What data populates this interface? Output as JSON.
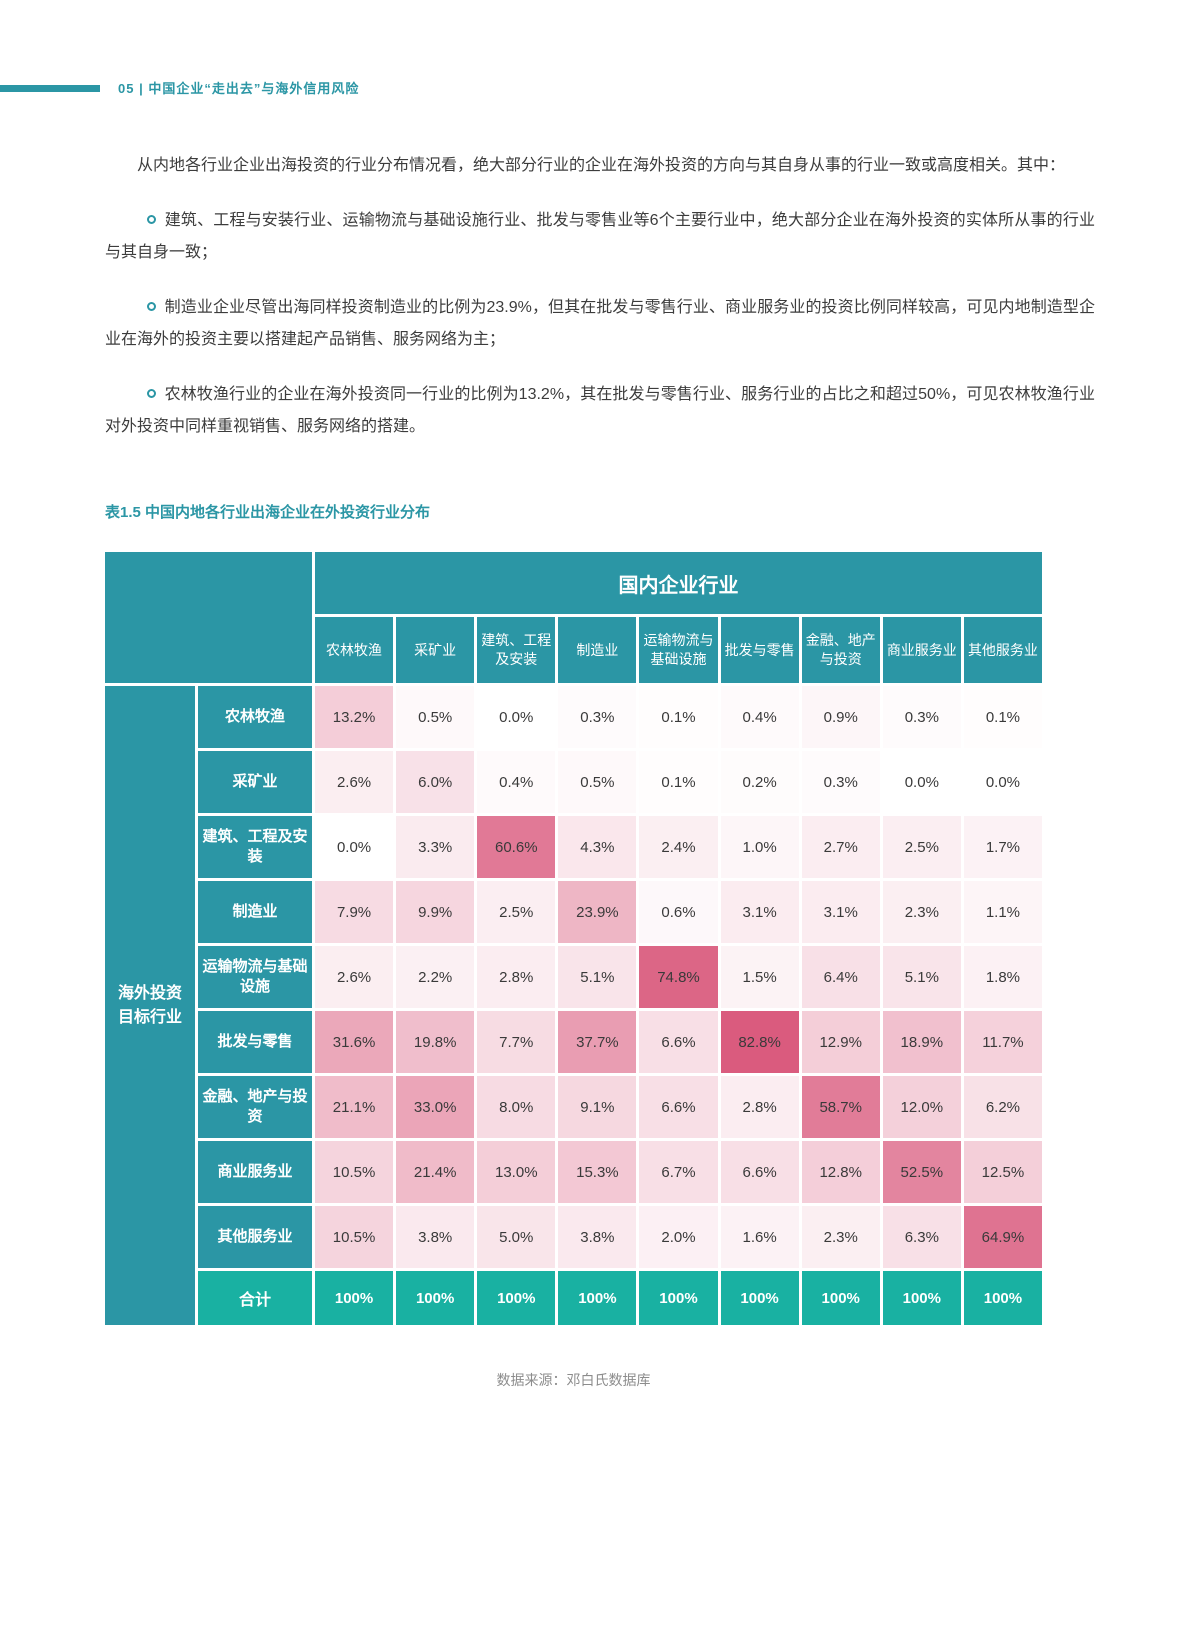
{
  "page_header": {
    "text": "05 | 中国企业“走出去”与海外信用风险"
  },
  "intro": "从内地各行业企业出海投资的行业分布情况看，绝大部分行业的企业在海外投资的方向与其自身从事的行业一致或高度相关。其中：",
  "bullets": [
    "建筑、工程与安装行业、运输物流与基础设施行业、批发与零售业等6个主要行业中，绝大部分企业在海外投资的实体所从事的行业与其自身一致；",
    "制造业企业尽管出海同样投资制造业的比例为23.9%，但其在批发与零售行业、商业服务业的投资比例同样较高，可见内地制造型企业在海外的投资主要以搭建起产品销售、服务网络为主；",
    "农林牧渔行业的企业在海外投资同一行业的比例为13.2%，其在批发与零售行业、服务行业的占比之和超过50%，可见农林牧渔行业对外投资中同样重视销售、服务网络的搭建。"
  ],
  "table": {
    "title": "表1.5 中国内地各行业出海企业在外投资行业分布",
    "top_header": "国内企业行业",
    "left_header_lines": [
      "海外投资",
      "目标行业"
    ],
    "columns": [
      "农林牧渔",
      "采矿业",
      "建筑、工程及安装",
      "制造业",
      "运输物流与基础设施",
      "批发与零售",
      "金融、地产与投资",
      "商业服务业",
      "其他服务业"
    ],
    "rows": [
      {
        "label": "农林牧渔",
        "values": [
          "13.2%",
          "0.5%",
          "0.0%",
          "0.3%",
          "0.1%",
          "0.4%",
          "0.9%",
          "0.3%",
          "0.1%"
        ]
      },
      {
        "label": "采矿业",
        "values": [
          "2.6%",
          "6.0%",
          "0.4%",
          "0.5%",
          "0.1%",
          "0.2%",
          "0.3%",
          "0.0%",
          "0.0%"
        ]
      },
      {
        "label": "建筑、工程及安装",
        "values": [
          "0.0%",
          "3.3%",
          "60.6%",
          "4.3%",
          "2.4%",
          "1.0%",
          "2.7%",
          "2.5%",
          "1.7%"
        ]
      },
      {
        "label": "制造业",
        "values": [
          "7.9%",
          "9.9%",
          "2.5%",
          "23.9%",
          "0.6%",
          "3.1%",
          "3.1%",
          "2.3%",
          "1.1%"
        ]
      },
      {
        "label": "运输物流与基础设施",
        "values": [
          "2.6%",
          "2.2%",
          "2.8%",
          "5.1%",
          "74.8%",
          "1.5%",
          "6.4%",
          "5.1%",
          "1.8%"
        ]
      },
      {
        "label": "批发与零售",
        "values": [
          "31.6%",
          "19.8%",
          "7.7%",
          "37.7%",
          "6.6%",
          "82.8%",
          "12.9%",
          "18.9%",
          "11.7%"
        ]
      },
      {
        "label": "金融、地产与投资",
        "values": [
          "21.1%",
          "33.0%",
          "8.0%",
          "9.1%",
          "6.6%",
          "2.8%",
          "58.7%",
          "12.0%",
          "6.2%"
        ]
      },
      {
        "label": "商业服务业",
        "values": [
          "10.5%",
          "21.4%",
          "13.0%",
          "15.3%",
          "6.7%",
          "6.6%",
          "12.8%",
          "52.5%",
          "12.5%"
        ]
      },
      {
        "label": "其他服务业",
        "values": [
          "10.5%",
          "3.8%",
          "5.0%",
          "3.8%",
          "2.0%",
          "1.6%",
          "2.3%",
          "6.3%",
          "64.9%"
        ]
      }
    ],
    "total": {
      "label": "合计",
      "values": [
        "100%",
        "100%",
        "100%",
        "100%",
        "100%",
        "100%",
        "100%",
        "100%",
        "100%"
      ]
    },
    "source": "数据来源：邓白氏数据库"
  },
  "colors": {
    "teal": "#2b96a5",
    "total_teal": "#19b1a2",
    "heat_max": "#d5466d"
  }
}
